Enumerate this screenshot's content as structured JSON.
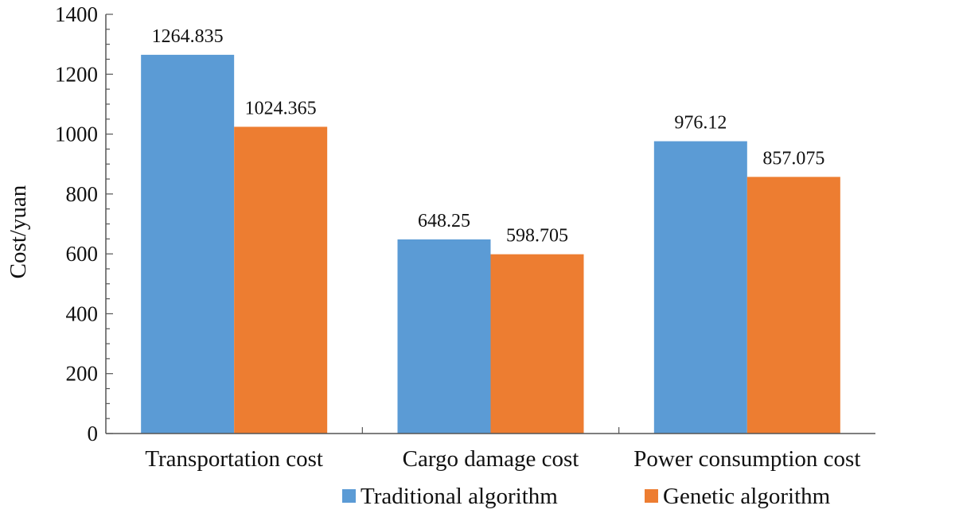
{
  "chart_data": {
    "type": "bar",
    "title": "",
    "xlabel": "",
    "ylabel": "Cost/yuan",
    "ylim": [
      0,
      1400
    ],
    "yticks": [
      0,
      200,
      400,
      600,
      800,
      1000,
      1200,
      1400
    ],
    "categories": [
      "Transportation cost",
      "Cargo damage cost",
      "Power consumption cost"
    ],
    "series": [
      {
        "name": "Traditional algorithm",
        "color": "#5b9bd5",
        "values": [
          1264.835,
          648.25,
          976.12
        ],
        "labels": [
          "1264.835",
          "648.25",
          "976.12"
        ]
      },
      {
        "name": "Genetic algorithm",
        "color": "#ed7d31",
        "values": [
          1024.365,
          598.705,
          857.075
        ],
        "labels": [
          "1024.365",
          "598.705",
          "857.075"
        ]
      }
    ],
    "grid": false,
    "legend_position": "bottom"
  }
}
